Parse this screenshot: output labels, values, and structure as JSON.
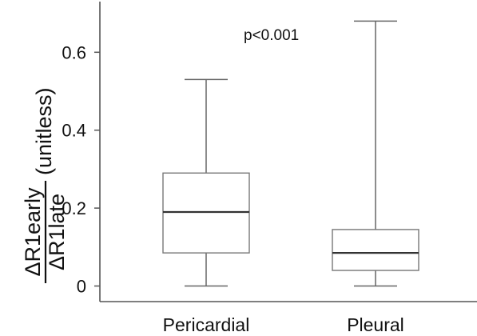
{
  "chart_data": {
    "type": "box",
    "categories": [
      "Pericardial",
      "Pleural"
    ],
    "boxes": [
      {
        "category": "Pericardial",
        "min": 0.0,
        "q1": 0.085,
        "median": 0.19,
        "q3": 0.29,
        "max": 0.53
      },
      {
        "category": "Pleural",
        "min": 0.0,
        "q1": 0.04,
        "median": 0.085,
        "q3": 0.145,
        "max": 0.68
      }
    ],
    "ylabel": {
      "numerator": "ΔR1early",
      "denominator": "ΔR1late",
      "unit": "(unitless)"
    },
    "yticks": [
      0,
      0.2,
      0.4,
      0.6
    ],
    "ytick_labels": [
      "0",
      "0.2",
      "0.4",
      "0.6"
    ],
    "ylim": [
      -0.04,
      0.73
    ],
    "annotation": "p<0.001",
    "grid": false,
    "colors": {
      "box_edge": "#777777",
      "median": "#333333",
      "axis": "#555555",
      "box_fill": "#ffffff"
    }
  }
}
